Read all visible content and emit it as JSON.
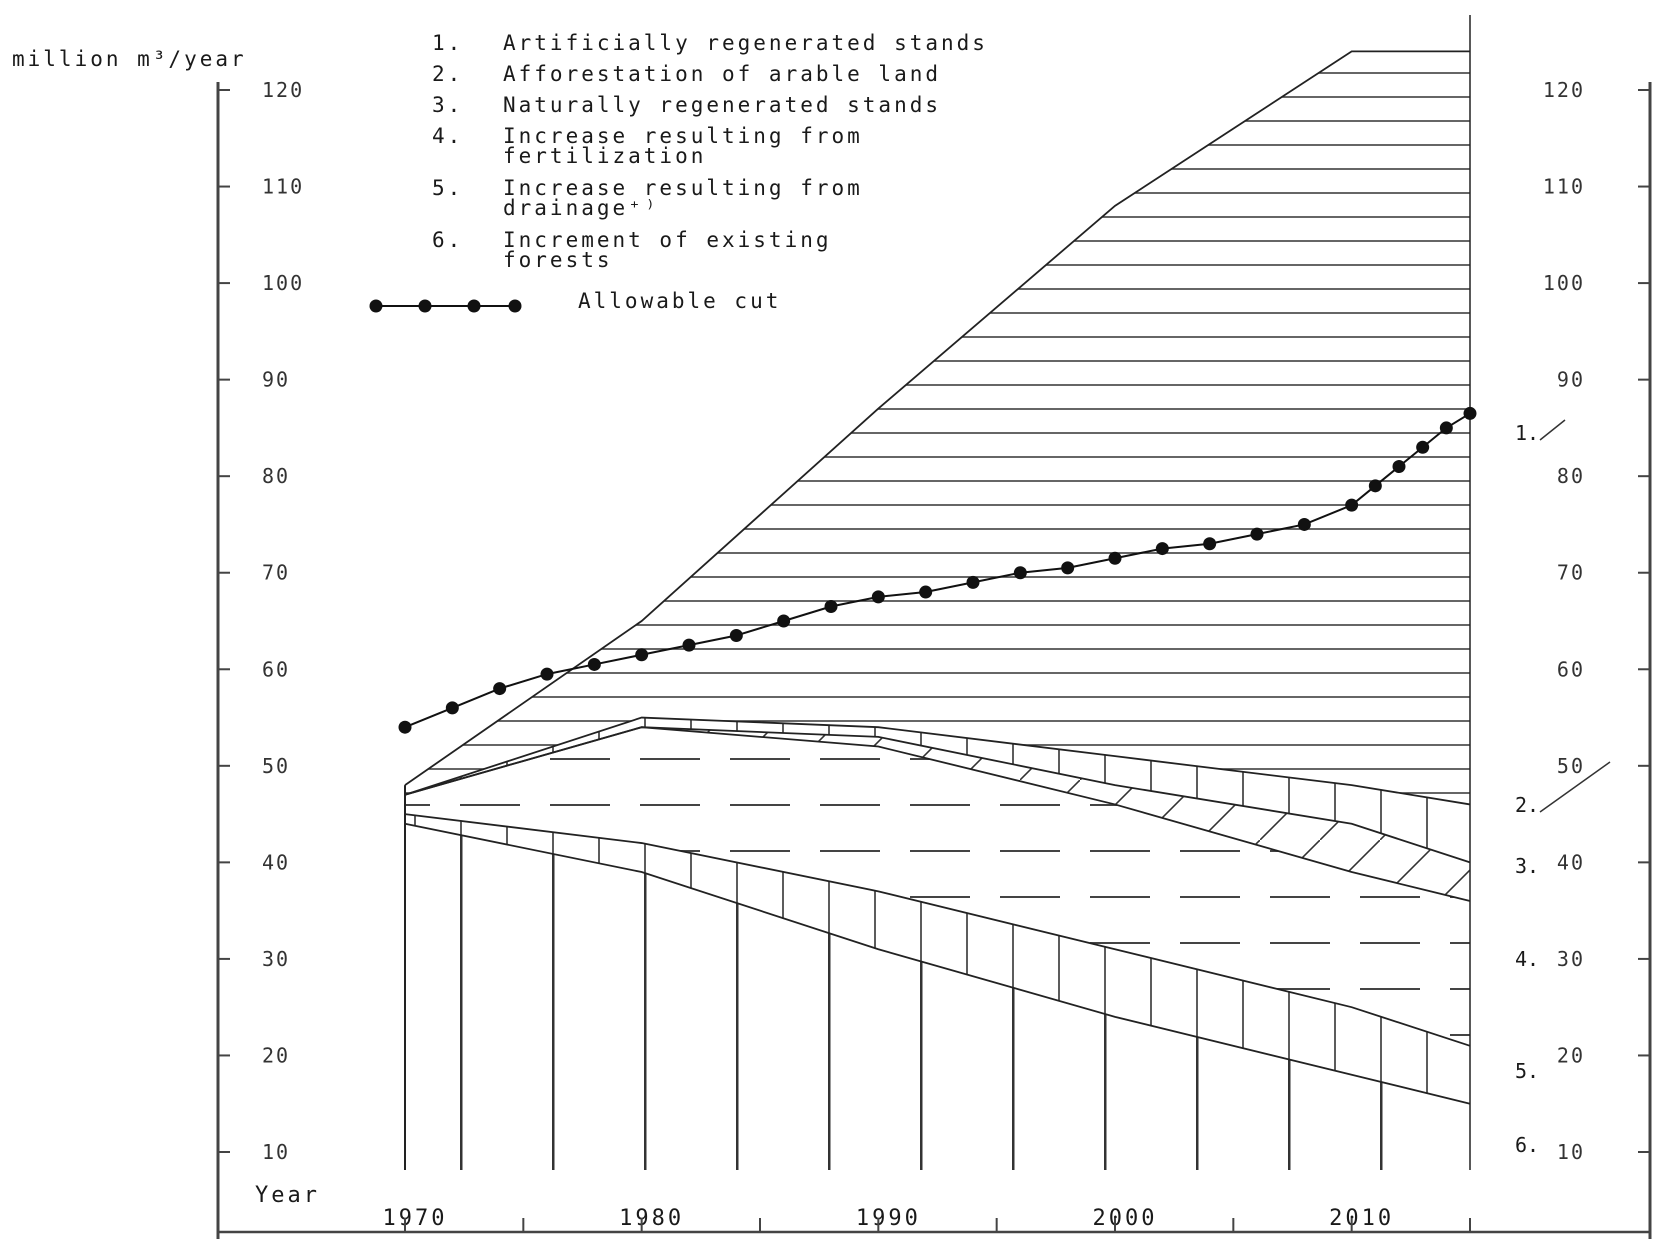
{
  "chart_data": {
    "type": "area",
    "ylabel": "million m³/year",
    "xlabel": "Year",
    "xlim": [
      1970,
      2015
    ],
    "ylim": [
      10,
      120
    ],
    "x_ticks": [
      "1970",
      "1980",
      "1990",
      "2000",
      "2010"
    ],
    "y_ticks_left": [
      "120",
      "110",
      "100",
      "90",
      "80",
      "70",
      "60",
      "50",
      "40",
      "30",
      "20",
      "10"
    ],
    "y_ticks_right": [
      "120",
      "110",
      "100",
      "90",
      "80",
      "70",
      "60",
      "50",
      "40",
      "30",
      "20",
      "10"
    ],
    "legend": [
      {
        "num": "1.",
        "lines": [
          "Artificially regenerated stands"
        ]
      },
      {
        "num": "2.",
        "lines": [
          "Afforestation of arable land"
        ]
      },
      {
        "num": "3.",
        "lines": [
          "Naturally regenerated stands"
        ]
      },
      {
        "num": "4.",
        "lines": [
          "Increase resulting from",
          "fertilization"
        ]
      },
      {
        "num": "5.",
        "lines": [
          "Increase resulting from",
          "drainage⁺⁾"
        ]
      },
      {
        "num": "6.",
        "lines": [
          "Increment of existing",
          "forests"
        ]
      }
    ],
    "allowable_cut_label": "Allowable cut",
    "area_markers": [
      "1.",
      "2.",
      "3.",
      "4.",
      "5.",
      "6."
    ],
    "x": [
      1970,
      1980,
      1990,
      2000,
      2010,
      2015
    ],
    "series": [
      {
        "name": "6. Increment of existing forests",
        "values": [
          44,
          39,
          31,
          24,
          18,
          15
        ]
      },
      {
        "name": "5. Increase resulting from drainage",
        "values": [
          45,
          42,
          37,
          31,
          25,
          21
        ]
      },
      {
        "name": "4. Increase resulting from fertilization",
        "values": [
          47,
          54,
          52,
          46,
          39,
          36
        ]
      },
      {
        "name": "3. Naturally regenerated stands",
        "values": [
          47,
          54,
          53,
          48,
          44,
          40
        ]
      },
      {
        "name": "2. Afforestation of arable land",
        "values": [
          47,
          55,
          54,
          51,
          48,
          46
        ]
      },
      {
        "name": "1. Artificially regenerated stands",
        "values": [
          48,
          65,
          87,
          108,
          124,
          124
        ]
      }
    ],
    "allowable_cut": {
      "x": [
        1970,
        1972,
        1974,
        1976,
        1978,
        1980,
        1982,
        1984,
        1986,
        1988,
        1990,
        1992,
        1994,
        1996,
        1998,
        2000,
        2002,
        2004,
        2006,
        2008,
        2010,
        2011,
        2012,
        2013,
        2014,
        2015
      ],
      "y": [
        54,
        56,
        58,
        59.5,
        60.5,
        61.5,
        62.5,
        63.5,
        65,
        66.5,
        67.5,
        68,
        69,
        70,
        70.5,
        71.5,
        72.5,
        73,
        74,
        75,
        77,
        79,
        81,
        83,
        85,
        86.5
      ]
    }
  }
}
